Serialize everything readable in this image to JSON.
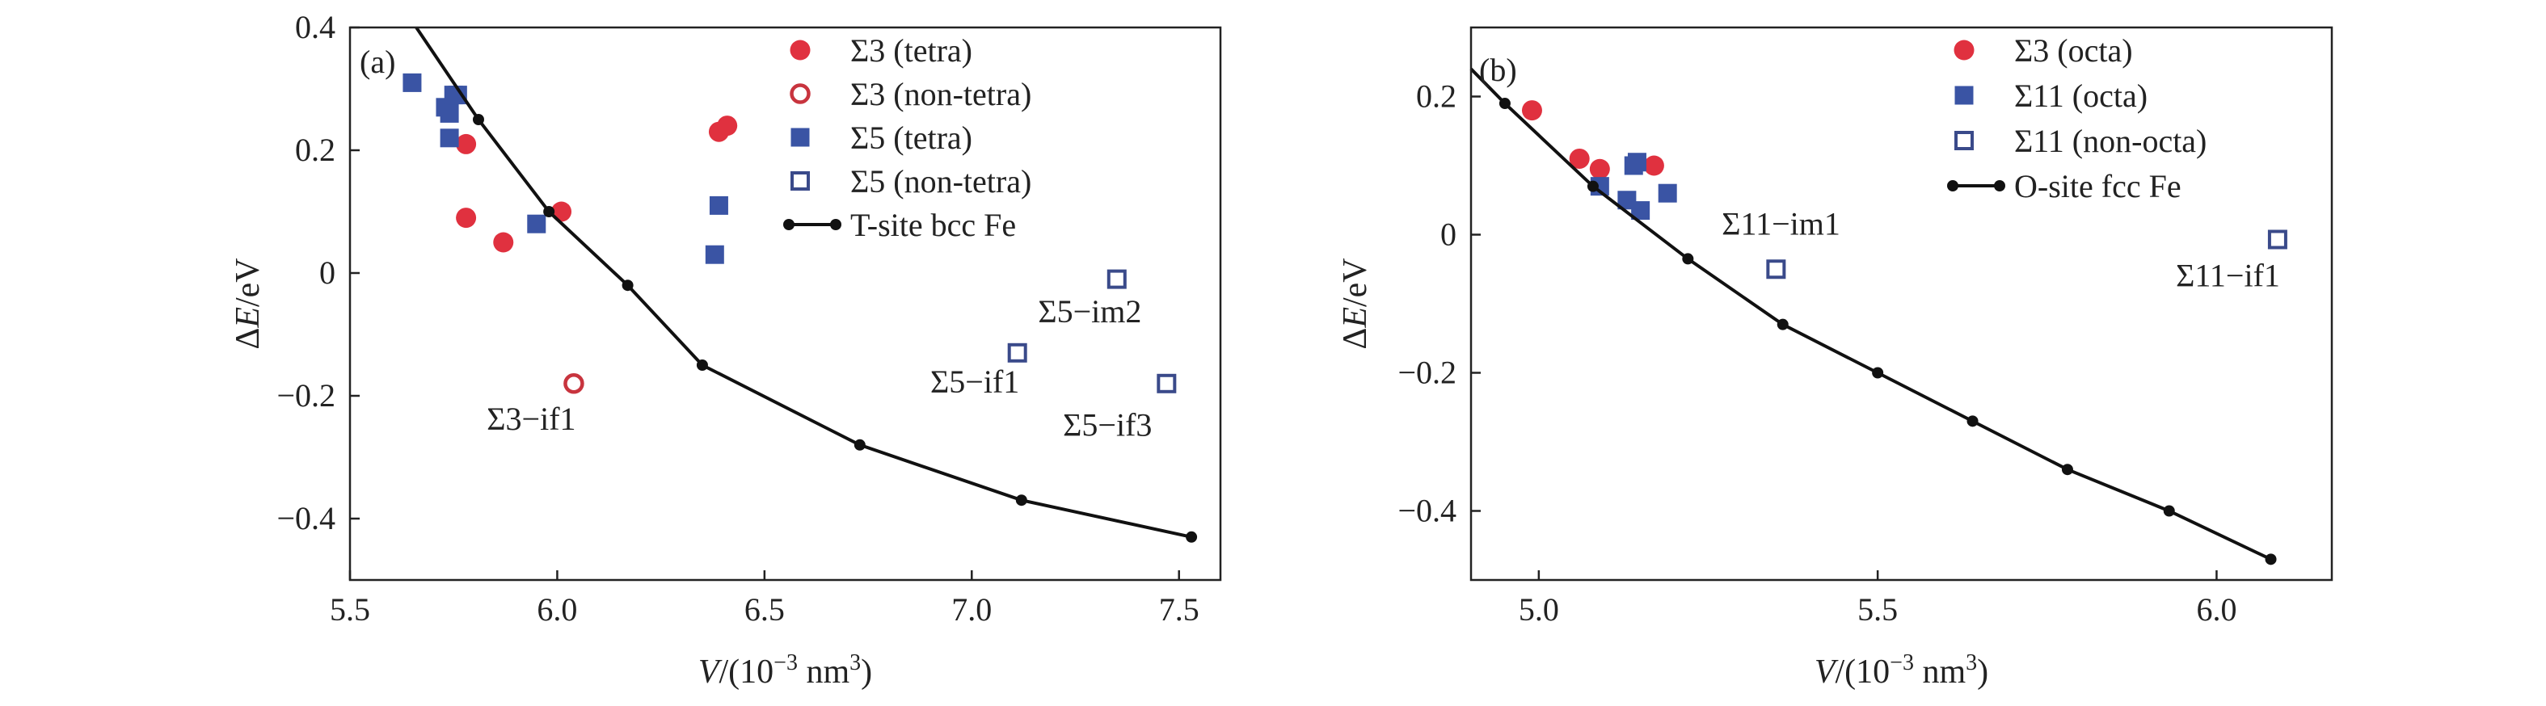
{
  "chart_data": [
    {
      "type": "scatter",
      "panel_label": "(a)",
      "xlabel_prefix": "V",
      "xlabel_rest": "/(10",
      "xlabel_exp": "−3",
      "xlabel_unit": " nm",
      "xlabel_unit_exp": "3",
      "xlabel_close": ")",
      "ylabel_prefix": "Δ",
      "ylabel_var": "E",
      "ylabel_unit": "/eV",
      "xlim": [
        5.5,
        7.6
      ],
      "ylim": [
        -0.5,
        0.4
      ],
      "xticks": [
        5.5,
        6.0,
        6.5,
        7.0,
        7.5
      ],
      "xtick_labels": [
        "5.5",
        "6.0",
        "6.5",
        "7.0",
        "7.5"
      ],
      "yticks": [
        -0.4,
        -0.2,
        0,
        0.2,
        0.4
      ],
      "ytick_labels": [
        "−0.4",
        "−0.2",
        "0",
        "0.2",
        "0.4"
      ],
      "legend_position": "top-right",
      "series": [
        {
          "name": "Σ3 (tetra)",
          "marker": "circle-filled",
          "color": "#e0313f",
          "points": [
            [
              5.78,
              0.21
            ],
            [
              5.78,
              0.09
            ],
            [
              5.87,
              0.05
            ],
            [
              6.01,
              0.1
            ],
            [
              6.39,
              0.23
            ],
            [
              6.41,
              0.24
            ]
          ]
        },
        {
          "name": "Σ3 (non-tetra)",
          "marker": "circle-open",
          "color": "#c8343e",
          "points": [
            [
              6.04,
              -0.18
            ]
          ]
        },
        {
          "name": "Σ5 (tetra)",
          "marker": "square-filled",
          "color": "#3a54a4",
          "points": [
            [
              5.65,
              0.31
            ],
            [
              5.73,
              0.27
            ],
            [
              5.74,
              0.26
            ],
            [
              5.74,
              0.22
            ],
            [
              5.75,
              0.29
            ],
            [
              5.76,
              0.29
            ],
            [
              5.95,
              0.08
            ],
            [
              6.38,
              0.03
            ],
            [
              6.39,
              0.11
            ]
          ]
        },
        {
          "name": "Σ5 (non-tetra)",
          "marker": "square-open",
          "color": "#3a4a8a",
          "points": [
            [
              7.11,
              -0.13
            ],
            [
              7.35,
              -0.01
            ],
            [
              7.47,
              -0.18
            ]
          ]
        },
        {
          "name": "T-site bcc Fe",
          "marker": "line-dot",
          "color": "#111111",
          "points": [
            [
              5.81,
              0.25
            ],
            [
              5.98,
              0.1
            ],
            [
              6.17,
              -0.02
            ],
            [
              6.35,
              -0.15
            ],
            [
              6.73,
              -0.28
            ],
            [
              7.12,
              -0.37
            ],
            [
              7.53,
              -0.43
            ]
          ],
          "extend_start": [
            5.66,
            0.4
          ]
        }
      ],
      "annotations": [
        {
          "text": "Σ3−if1",
          "x": 5.83,
          "y": -0.255
        },
        {
          "text": "Σ5−if1",
          "x": 6.9,
          "y": -0.195
        },
        {
          "text": "Σ5−im2",
          "x": 7.16,
          "y": -0.08
        },
        {
          "text": "Σ5−if3",
          "x": 7.22,
          "y": -0.265
        }
      ]
    },
    {
      "type": "scatter",
      "panel_label": "(b)",
      "xlabel_prefix": "V",
      "xlabel_rest": "/(10",
      "xlabel_exp": "−3",
      "xlabel_unit": " nm",
      "xlabel_unit_exp": "3",
      "xlabel_close": ")",
      "ylabel_prefix": "Δ",
      "ylabel_var": "E",
      "ylabel_unit": "/eV",
      "xlim": [
        4.9,
        6.17
      ],
      "ylim": [
        -0.5,
        0.3
      ],
      "xticks": [
        5.0,
        5.5,
        6.0
      ],
      "xtick_labels": [
        "5.0",
        "5.5",
        "6.0"
      ],
      "yticks": [
        -0.4,
        -0.2,
        0,
        0.2
      ],
      "ytick_labels": [
        "−0.4",
        "−0.2",
        "0",
        "0.2"
      ],
      "legend_position": "top-right",
      "series": [
        {
          "name": "Σ3 (octa)",
          "marker": "circle-filled",
          "color": "#e0313f",
          "points": [
            [
              4.99,
              0.18
            ],
            [
              5.06,
              0.11
            ],
            [
              5.09,
              0.095
            ],
            [
              5.17,
              0.1
            ]
          ]
        },
        {
          "name": "Σ11 (octa)",
          "marker": "square-filled",
          "color": "#3a54a4",
          "points": [
            [
              5.09,
              0.07
            ],
            [
              5.13,
              0.05
            ],
            [
              5.14,
              0.1
            ],
            [
              5.145,
              0.105
            ],
            [
              5.15,
              0.035
            ],
            [
              5.19,
              0.06
            ]
          ]
        },
        {
          "name": "Σ11 (non-octa)",
          "marker": "square-open",
          "color": "#3a4a8a",
          "points": [
            [
              5.35,
              -0.05
            ],
            [
              6.09,
              -0.007
            ]
          ]
        },
        {
          "name": "O-site fcc Fe",
          "marker": "line-dot",
          "color": "#111111",
          "points": [
            [
              4.95,
              0.19
            ],
            [
              5.08,
              0.07
            ],
            [
              5.22,
              -0.035
            ],
            [
              5.36,
              -0.13
            ],
            [
              5.5,
              -0.2
            ],
            [
              5.64,
              -0.27
            ],
            [
              5.78,
              -0.34
            ],
            [
              5.93,
              -0.4
            ],
            [
              6.08,
              -0.47
            ]
          ],
          "extend_start": [
            4.9,
            0.24
          ]
        }
      ],
      "annotations": [
        {
          "text": "Σ11−im1",
          "x": 5.27,
          "y": 0.0
        },
        {
          "text": "Σ11−if1",
          "x": 5.94,
          "y": -0.075
        }
      ]
    }
  ]
}
